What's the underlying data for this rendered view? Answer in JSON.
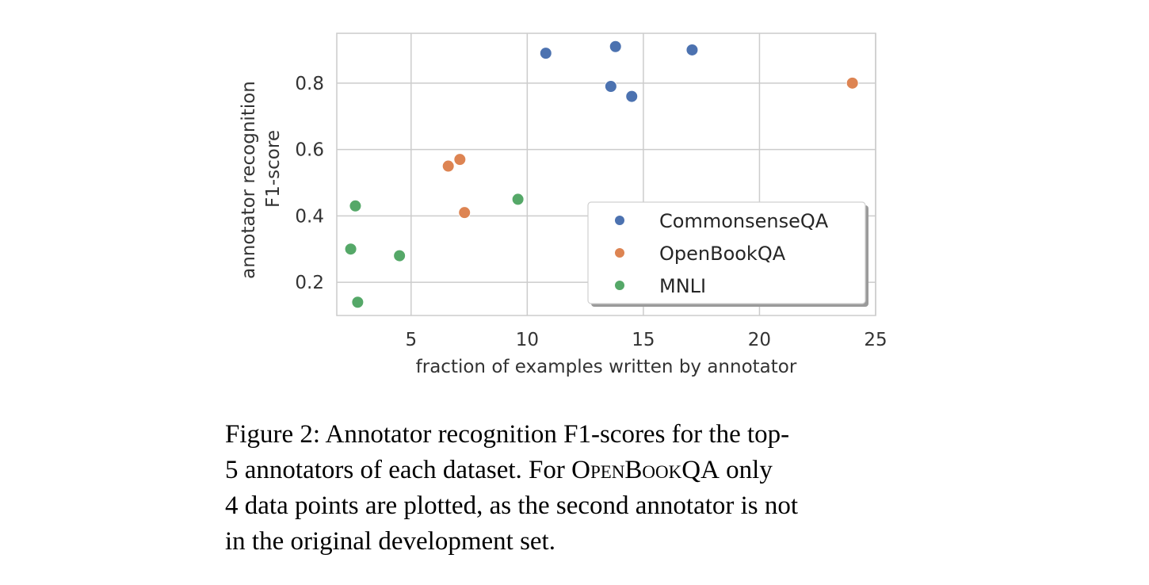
{
  "chart_data": {
    "type": "scatter",
    "xlabel": "fraction of examples written by annotator",
    "ylabel_lines": [
      "annotator recognition",
      "F1-score"
    ],
    "xlim": [
      1.8,
      25
    ],
    "ylim": [
      0.1,
      0.95
    ],
    "x_ticks": [
      5,
      10,
      15,
      20,
      25
    ],
    "y_ticks": [
      0.2,
      0.4,
      0.6,
      0.8
    ],
    "x_tick_labels": [
      "5",
      "10",
      "15",
      "20",
      "25"
    ],
    "y_tick_labels": [
      "0.2",
      "0.4",
      "0.6",
      "0.8"
    ],
    "grid": true,
    "legend_position": "lower-right",
    "series": [
      {
        "name": "CommonsenseQA",
        "color": "#4C72B0",
        "points": [
          [
            10.8,
            0.89
          ],
          [
            13.8,
            0.91
          ],
          [
            17.1,
            0.9
          ],
          [
            13.6,
            0.79
          ],
          [
            14.5,
            0.76
          ]
        ]
      },
      {
        "name": "OpenBookQA",
        "color": "#DD8452",
        "points": [
          [
            6.6,
            0.55
          ],
          [
            7.1,
            0.57
          ],
          [
            7.3,
            0.41
          ],
          [
            24.0,
            0.8
          ]
        ]
      },
      {
        "name": "MNLI",
        "color": "#55A868",
        "points": [
          [
            2.6,
            0.43
          ],
          [
            2.4,
            0.3
          ],
          [
            4.5,
            0.28
          ],
          [
            2.7,
            0.14
          ],
          [
            9.6,
            0.45
          ]
        ]
      }
    ]
  },
  "caption": {
    "label": "Figure 2:",
    "line1": "Annotator recognition F1-scores for the top-",
    "line2_pre": "5 annotators of each dataset. For ",
    "line2_dataset": "OpenBookQA",
    "line2_post": " only",
    "line3": "4 data points are plotted, as the second annotator is not",
    "line4": "in the original development set."
  }
}
